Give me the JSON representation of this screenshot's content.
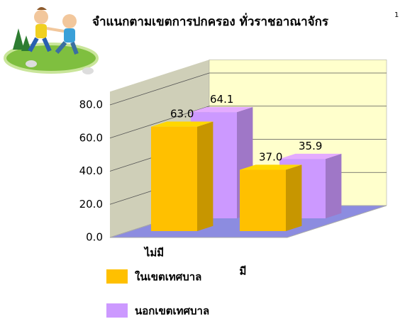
{
  "chart_data": {
    "type": "bar3d",
    "title": "จำแนกตามเขตการปกครอง ทั่วราชอาณาจักร",
    "title_superscript": "1",
    "categories": [
      "ไม่มี",
      "มี"
    ],
    "series": [
      {
        "name": "ในเขตเทศบาล",
        "color": "#ffc000",
        "values": [
          63.0,
          37.0
        ],
        "value_labels": [
          "63.0",
          "37.0"
        ]
      },
      {
        "name": "นอกเขตเทศบาล",
        "color": "#cc99ff",
        "values": [
          64.1,
          35.9
        ],
        "value_labels": [
          "64.1",
          "35.9"
        ]
      }
    ],
    "ylim": [
      0,
      80
    ],
    "yticks": [
      {
        "value": 0,
        "label": "0.0"
      },
      {
        "value": 20,
        "label": "20.0"
      },
      {
        "value": 40,
        "label": "40.0"
      },
      {
        "value": 60,
        "label": "60.0"
      },
      {
        "value": 80,
        "label": "80.0"
      }
    ],
    "grid": true
  }
}
